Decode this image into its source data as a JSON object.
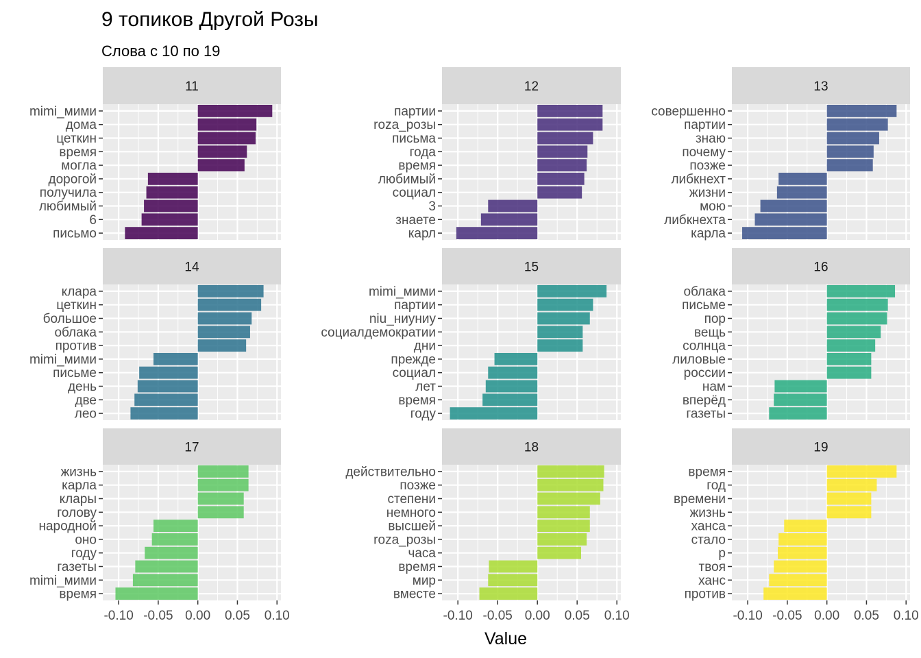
{
  "chart_data": {
    "type": "bar",
    "orientation": "horizontal",
    "title": "9 топиков Другой Розы",
    "subtitle": "Слова с 10 по 19",
    "xlabel": "Value",
    "ylabel": "",
    "xlim": [
      -0.12,
      0.105
    ],
    "x_ticks": [
      -0.1,
      -0.05,
      0.0,
      0.05,
      0.1
    ],
    "x_tick_labels": [
      "-0.10",
      "-0.05",
      "0.00",
      "0.05",
      "0.10"
    ],
    "grid": true,
    "legend": "none",
    "panels": [
      {
        "name": "11",
        "color": "#440154",
        "categories": [
          "mimi_мими",
          "дома",
          "цеткин",
          "время",
          "могла",
          "дорогой",
          "получила",
          "любимый",
          "6",
          "письмо"
        ],
        "values": [
          0.094,
          0.074,
          0.073,
          0.062,
          0.059,
          -0.063,
          -0.065,
          -0.068,
          -0.071,
          -0.092
        ]
      },
      {
        "name": "12",
        "color": "#472D7B",
        "categories": [
          "партии",
          "roza_розы",
          "письма",
          "года",
          "время",
          "любимый",
          "социал",
          "3",
          "знаете",
          "карл"
        ],
        "values": [
          0.082,
          0.082,
          0.07,
          0.063,
          0.062,
          0.059,
          0.056,
          -0.062,
          -0.071,
          -0.102
        ]
      },
      {
        "name": "13",
        "color": "#3B528B",
        "categories": [
          "совершенно",
          "партии",
          "знаю",
          "почему",
          "позже",
          "либкнехт",
          "жизни",
          "мою",
          "либкнехта",
          "карла"
        ],
        "values": [
          0.088,
          0.077,
          0.066,
          0.059,
          0.058,
          -0.061,
          -0.063,
          -0.084,
          -0.091,
          -0.107
        ]
      },
      {
        "name": "14",
        "color": "#2C728E",
        "categories": [
          "клара",
          "цеткин",
          "большое",
          "облака",
          "против",
          "mimi_мими",
          "письме",
          "день",
          "две",
          "лео"
        ],
        "values": [
          0.083,
          0.08,
          0.068,
          0.066,
          0.061,
          -0.056,
          -0.074,
          -0.076,
          -0.08,
          -0.085
        ]
      },
      {
        "name": "15",
        "color": "#21908C",
        "categories": [
          "mimi_мими",
          "партии",
          "niu_ниуниу",
          "социалдемократии",
          "дни",
          "прежде",
          "социал",
          "лет",
          "время",
          "году"
        ],
        "values": [
          0.087,
          0.07,
          0.066,
          0.057,
          0.057,
          -0.054,
          -0.062,
          -0.065,
          -0.069,
          -0.11
        ]
      },
      {
        "name": "16",
        "color": "#27AD81",
        "categories": [
          "облака",
          "письме",
          "пор",
          "вещь",
          "солнца",
          "лиловые",
          "россии",
          "нам",
          "вперёд",
          "газеты"
        ],
        "values": [
          0.086,
          0.077,
          0.076,
          0.068,
          0.061,
          0.056,
          0.056,
          -0.066,
          -0.067,
          -0.073
        ]
      },
      {
        "name": "17",
        "color": "#5DC863",
        "categories": [
          "жизнь",
          "карла",
          "клары",
          "голову",
          "народной",
          "оно",
          "году",
          "газеты",
          "mimi_мими",
          "время"
        ],
        "values": [
          0.064,
          0.064,
          0.058,
          0.058,
          -0.056,
          -0.058,
          -0.067,
          -0.079,
          -0.082,
          -0.104
        ]
      },
      {
        "name": "18",
        "color": "#AADC32",
        "categories": [
          "действительно",
          "позже",
          "степени",
          "немного",
          "высшей",
          "roza_розы",
          "часа",
          "время",
          "мир",
          "вместе"
        ],
        "values": [
          0.084,
          0.083,
          0.079,
          0.066,
          0.066,
          0.062,
          0.055,
          -0.061,
          -0.062,
          -0.073
        ]
      },
      {
        "name": "19",
        "color": "#FDE725",
        "categories": [
          "время",
          "год",
          "времени",
          "жизнь",
          "ханса",
          "стало",
          "р",
          "твоя",
          "ханс",
          "против"
        ],
        "values": [
          0.088,
          0.063,
          0.056,
          0.056,
          -0.054,
          -0.061,
          -0.062,
          -0.067,
          -0.073,
          -0.08
        ]
      }
    ]
  }
}
